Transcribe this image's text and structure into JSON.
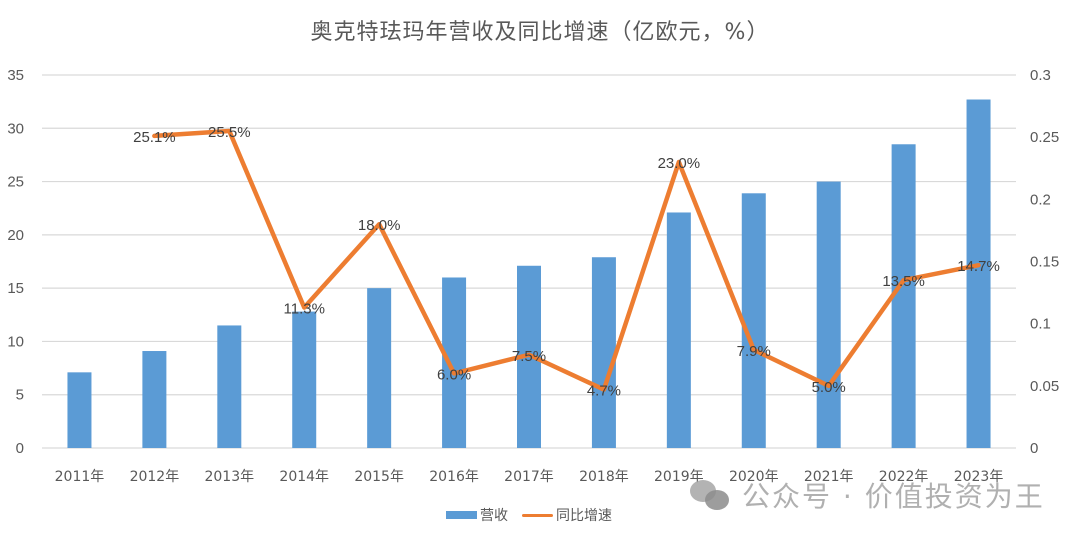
{
  "title": "奥克特珐玛年营收及同比增速（亿欧元，%）",
  "legend": {
    "revenue_label": "营收",
    "growth_label": "同比增速"
  },
  "watermark": {
    "icon": "wechat-icon",
    "text": "公众号 · 价值投资为王"
  },
  "colors": {
    "bar": "#5b9bd5",
    "line": "#ed7d31",
    "grid": "#d9d9d9",
    "text": "#595959"
  },
  "chart_data": {
    "type": "bar+line",
    "title": "奥克特珐玛年营收及同比增速（亿欧元，%）",
    "categories": [
      "2011年",
      "2012年",
      "2013年",
      "2014年",
      "2015年",
      "2016年",
      "2017年",
      "2018年",
      "2019年",
      "2020年",
      "2021年",
      "2022年",
      "2023年"
    ],
    "series": [
      {
        "name": "营收",
        "type": "bar",
        "axis": "left",
        "values": [
          7.1,
          9.1,
          11.5,
          12.8,
          15.0,
          16.0,
          17.1,
          17.9,
          22.1,
          23.9,
          25.0,
          28.5,
          32.7
        ]
      },
      {
        "name": "同比增速",
        "type": "line",
        "axis": "right",
        "values": [
          null,
          0.251,
          0.255,
          0.113,
          0.18,
          0.06,
          0.075,
          0.047,
          0.23,
          0.079,
          0.05,
          0.135,
          0.147
        ],
        "labels": [
          "",
          "25.1%",
          "25.5%",
          "11.3%",
          "18.0%",
          "6.0%",
          "7.5%",
          "4.7%",
          "23.0%",
          "7.9%",
          "5.0%",
          "13.5%",
          "14.7%"
        ]
      }
    ],
    "left_axis": {
      "ticks": [
        "0",
        "5",
        "10",
        "15",
        "20",
        "25",
        "30",
        "35"
      ],
      "ylim": [
        0,
        35
      ]
    },
    "right_axis": {
      "ticks": [
        "0",
        "0.05",
        "0.1",
        "0.15",
        "0.2",
        "0.25",
        "0.3"
      ],
      "ylim": [
        0,
        0.3
      ]
    },
    "xlabel": "",
    "ylabel": "",
    "grid": true,
    "legend_position": "bottom"
  }
}
